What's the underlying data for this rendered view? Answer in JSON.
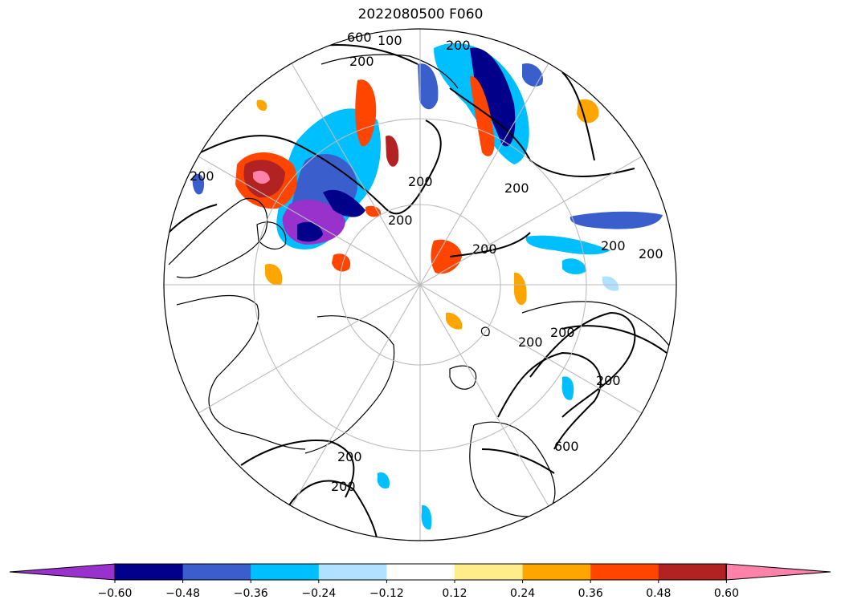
{
  "title": "2022080500 F060",
  "contour_labels": [
    "600",
    "200",
    "100",
    "200",
    "200",
    "200",
    "200",
    "200",
    "200",
    "200",
    "200",
    "200",
    "200",
    "200",
    "200",
    "200",
    "600"
  ],
  "colorbar": {
    "colors": [
      "#9932CC",
      "#00008B",
      "#3A5FCD",
      "#00BFFF",
      "#B0E2FF",
      "#FFFFFF",
      "#FFEC8B",
      "#FFA500",
      "#FF4500",
      "#B22222",
      "#FF82AB"
    ],
    "ticks": [
      "−0.60",
      "−0.48",
      "−0.36",
      "−0.24",
      "−0.12",
      "0.12",
      "0.24",
      "0.36",
      "0.48",
      "0.60"
    ]
  },
  "colors": {
    "coastline": "#000000",
    "graticule": "#bbbbbb",
    "contour": "#000000"
  }
}
